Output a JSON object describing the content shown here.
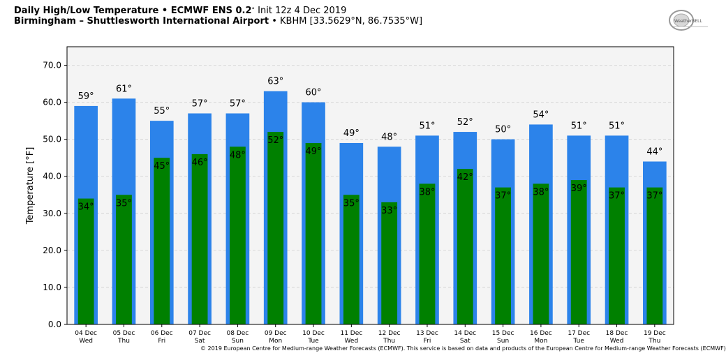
{
  "header": {
    "line1_bold": "Daily High/Low Temperature • ECMWF ENS 0.2",
    "line1_deg": "°",
    "line1_rest": " Init 12z 4 Dec 2019",
    "line2_bold": "Birmingham – Shuttlesworth International Airport",
    "line2_rest": " • KBHM [33.5629°N, 86.7535°W]"
  },
  "logo": {
    "text": "WeatherBELL"
  },
  "copyright": "© 2019 European Centre for Medium-range Weather Forecasts (ECMWF). This service is based on data and products of the European Centre for Medium-range Weather Forecasts (ECMWF)",
  "colors": {
    "high": "#2c83ea",
    "low": "#008000",
    "plot_bg": "#f4f4f4"
  },
  "chart_data": {
    "type": "bar",
    "title": "Daily High/Low Temperature",
    "ylabel": "Temperature [°F]",
    "xlabel": "",
    "ylim": [
      0,
      75
    ],
    "yticks": [
      "0.0",
      "10.0",
      "20.0",
      "30.0",
      "40.0",
      "50.0",
      "60.0",
      "70.0"
    ],
    "grid": true,
    "categories": [
      "04 Dec",
      "05 Dec",
      "06 Dec",
      "07 Dec",
      "08 Dec",
      "09 Dec",
      "10 Dec",
      "11 Dec",
      "12 Dec",
      "13 Dec",
      "14 Dec",
      "15 Dec",
      "16 Dec",
      "17 Dec",
      "18 Dec",
      "19 Dec"
    ],
    "weekdays": [
      "Wed",
      "Thu",
      "Fri",
      "Sat",
      "Sun",
      "Mon",
      "Tue",
      "Wed",
      "Thu",
      "Fri",
      "Sat",
      "Sun",
      "Mon",
      "Tue",
      "Wed",
      "Thu"
    ],
    "series": [
      {
        "values": [
          59,
          61,
          55,
          57,
          57,
          63,
          60,
          49,
          48,
          51,
          52,
          50,
          54,
          51,
          51,
          44
        ]
      },
      {
        "values": [
          34,
          35,
          45,
          46,
          48,
          52,
          49,
          35,
          33,
          38,
          42,
          37,
          38,
          39,
          37,
          37
        ]
      }
    ]
  }
}
